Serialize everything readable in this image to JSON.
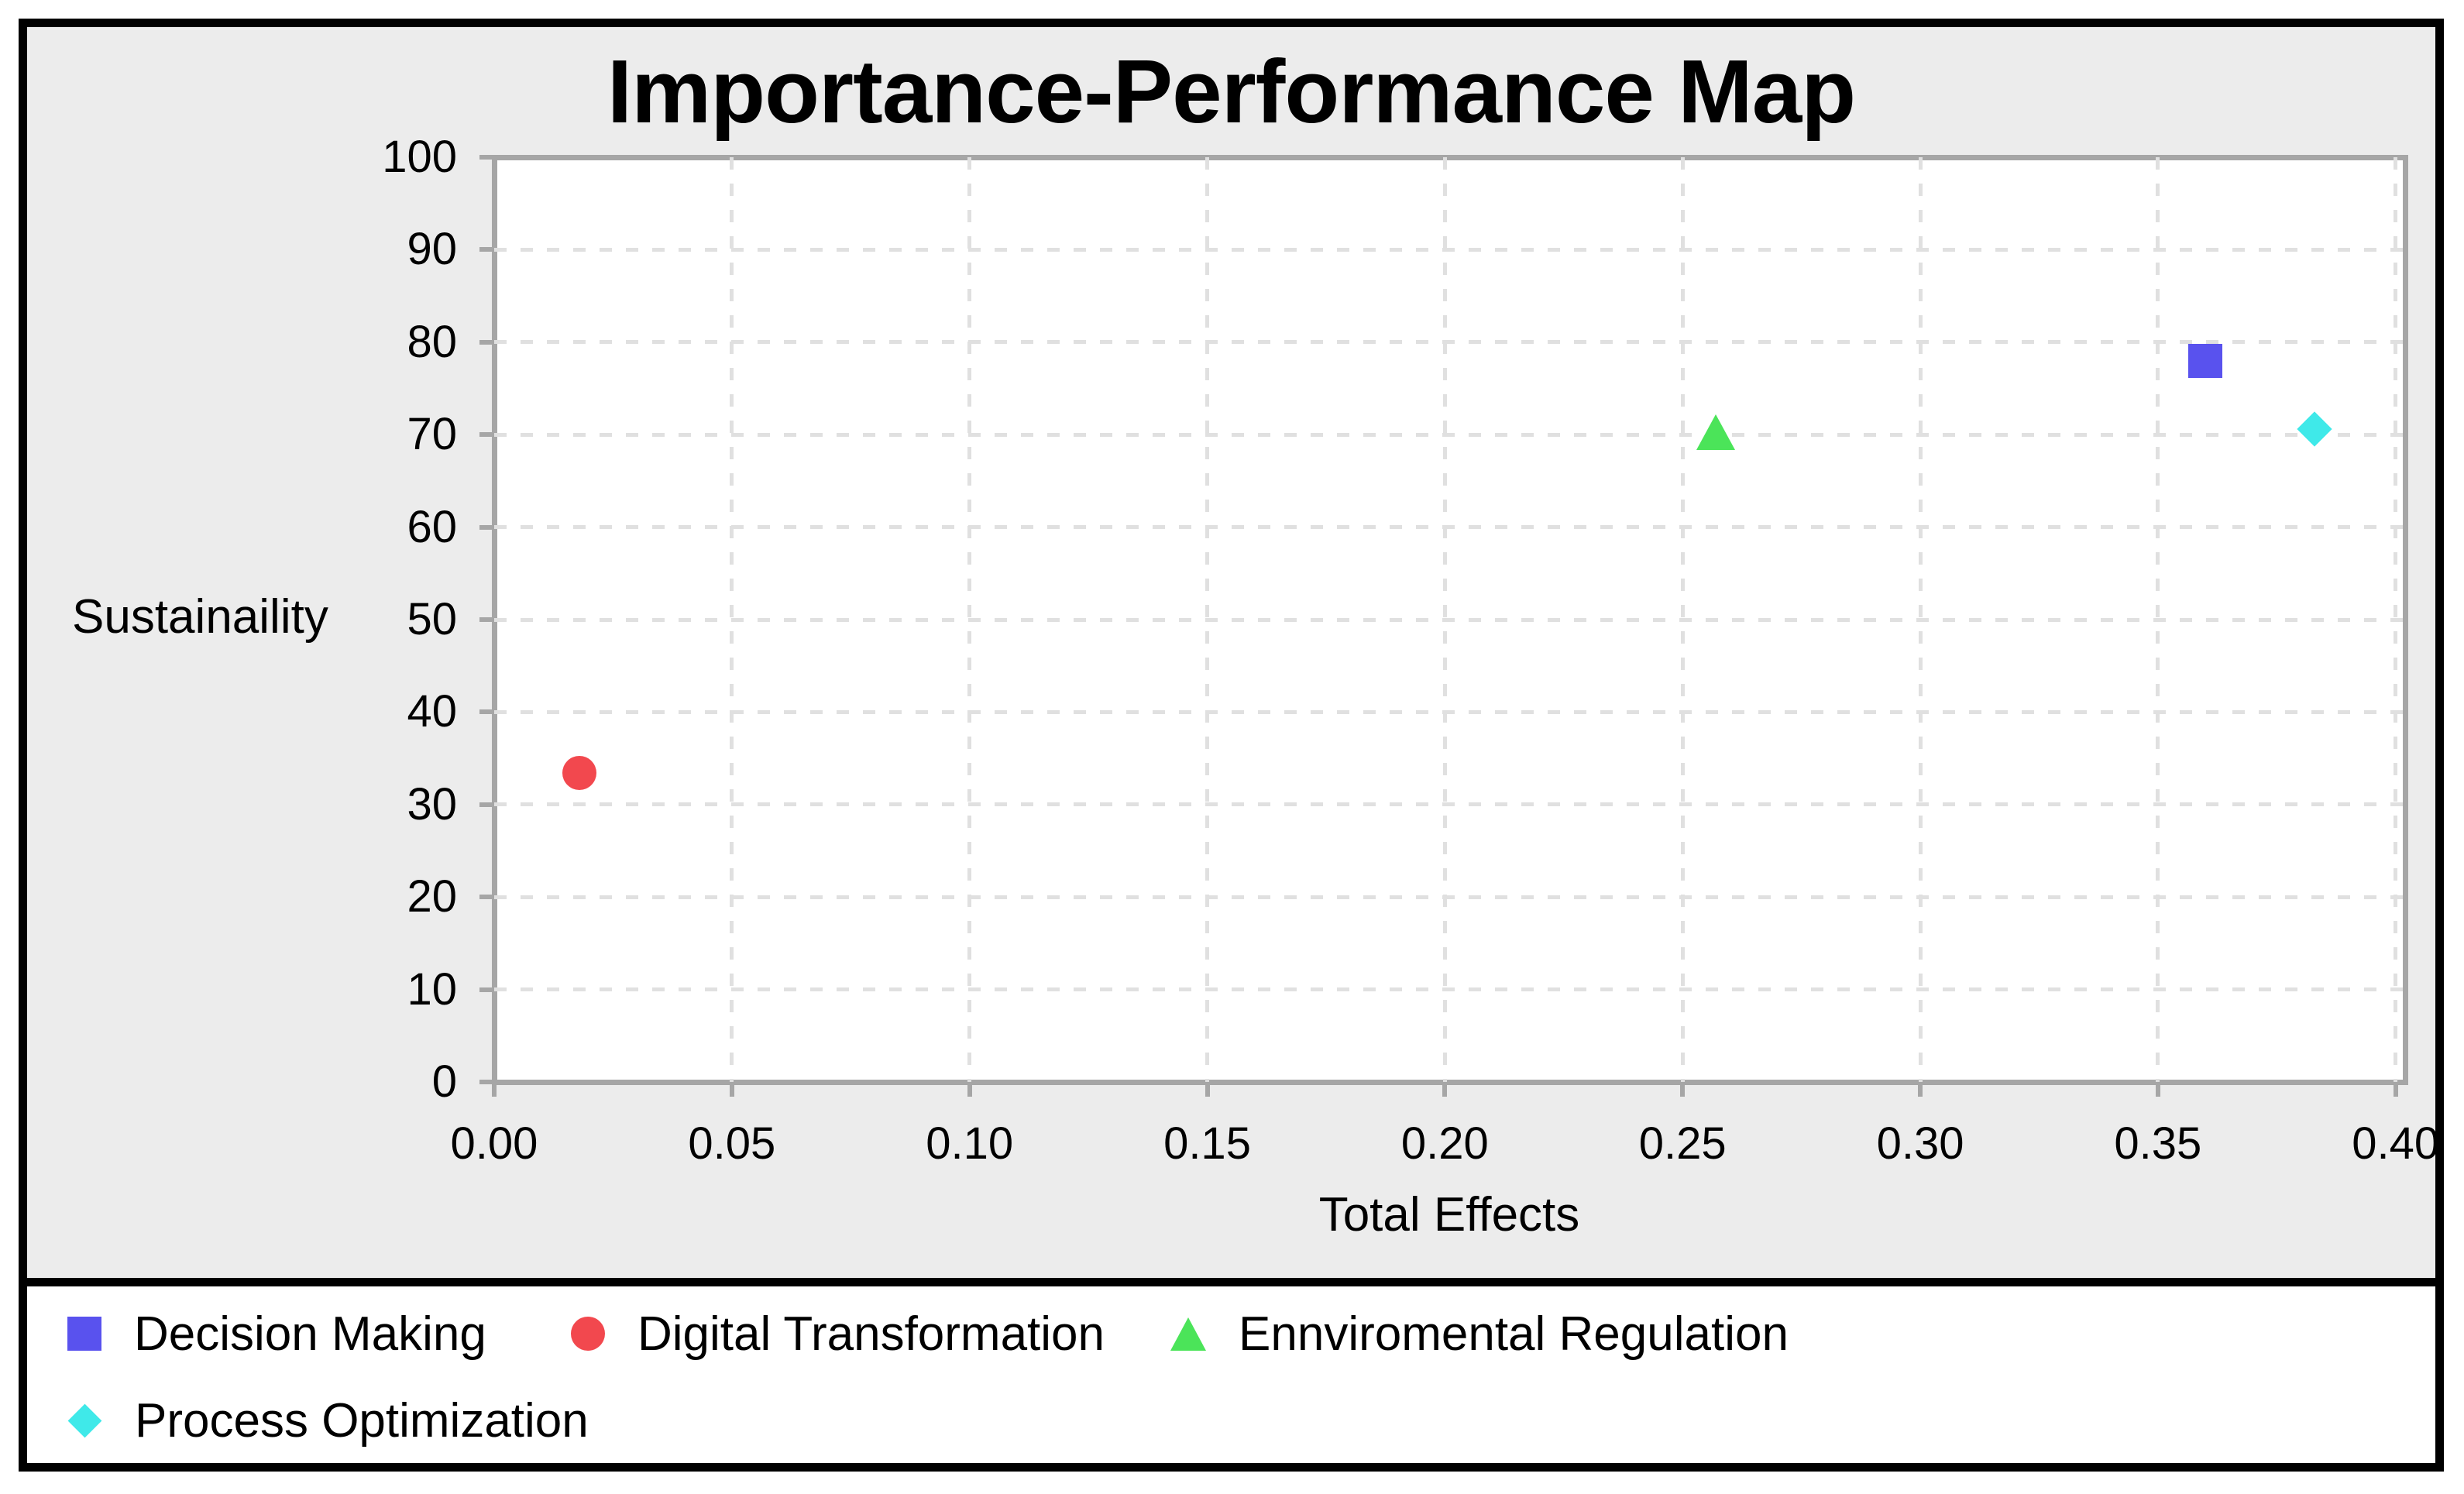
{
  "chart_data": {
    "type": "scatter",
    "title": "Importance-Performance Map",
    "xlabel": "Total Effects",
    "ylabel": "Sustainaility",
    "xlim": [
      0,
      0.402
    ],
    "ylim": [
      0,
      100
    ],
    "grid": "dashed",
    "legend_position": "bottom",
    "x_ticks": [
      {
        "v": 0.0,
        "label": "0.00"
      },
      {
        "v": 0.05,
        "label": "0.05"
      },
      {
        "v": 0.1,
        "label": "0.10"
      },
      {
        "v": 0.15,
        "label": "0.15"
      },
      {
        "v": 0.2,
        "label": "0.20"
      },
      {
        "v": 0.25,
        "label": "0.25"
      },
      {
        "v": 0.3,
        "label": "0.30"
      },
      {
        "v": 0.35,
        "label": "0.35"
      },
      {
        "v": 0.4,
        "label": "0.40"
      }
    ],
    "y_ticks": [
      {
        "v": 0,
        "label": "0"
      },
      {
        "v": 10,
        "label": "10"
      },
      {
        "v": 20,
        "label": "20"
      },
      {
        "v": 30,
        "label": "30"
      },
      {
        "v": 40,
        "label": "40"
      },
      {
        "v": 50,
        "label": "50"
      },
      {
        "v": 60,
        "label": "60"
      },
      {
        "v": 70,
        "label": "70"
      },
      {
        "v": 80,
        "label": "80"
      },
      {
        "v": 90,
        "label": "90"
      },
      {
        "v": 100,
        "label": "100"
      }
    ],
    "series": [
      {
        "name": "Decision Making",
        "marker": "square",
        "color": "#5952EE",
        "x": 0.36,
        "y": 78.0
      },
      {
        "name": "Digital Transformation",
        "marker": "circle",
        "color": "#F2484E",
        "x": 0.018,
        "y": 33.4
      },
      {
        "name": "Ennviromental Regulation",
        "marker": "triangle",
        "color": "#4BE459",
        "x": 0.257,
        "y": 70.3
      },
      {
        "name": "Process Optimization",
        "marker": "diamond",
        "color": "#3FE9E9",
        "x": 0.383,
        "y": 70.6
      }
    ],
    "colors": {
      "panel_bg": "#ECECEC",
      "plot_bg": "#FFFFFF",
      "axis": "#A6A6A6",
      "grid": "#E0E0E0",
      "frame": "#000000",
      "text": "#000000"
    }
  }
}
